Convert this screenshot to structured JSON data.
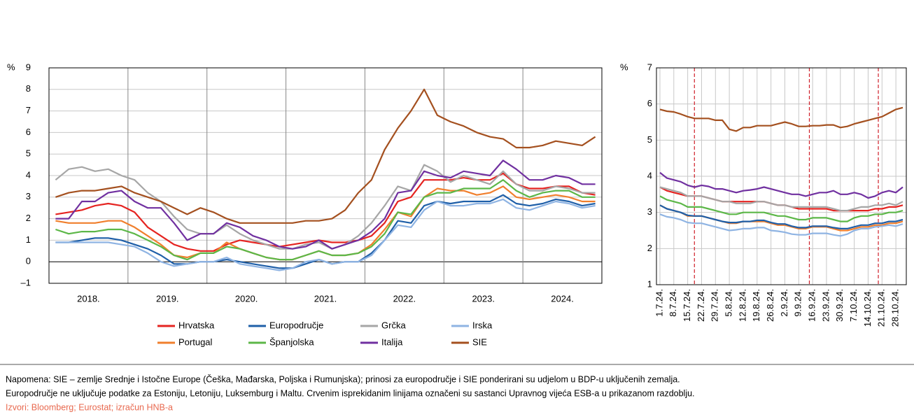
{
  "chart_data": [
    {
      "type": "line",
      "ylabel": "%",
      "categories": [
        "2018.",
        null,
        null,
        null,
        null,
        null,
        "2019.",
        null,
        null,
        null,
        null,
        null,
        "2020.",
        null,
        null,
        null,
        null,
        null,
        "2021.",
        null,
        null,
        null,
        null,
        null,
        "2022.",
        null,
        null,
        null,
        null,
        null,
        "2023.",
        null,
        null,
        null,
        null,
        null,
        "2024.",
        null,
        null,
        null,
        null,
        null
      ],
      "ylim": [
        -1,
        9
      ],
      "yticks": [
        {
          "value": -1,
          "label": "–1"
        },
        0,
        1,
        2,
        3,
        4,
        5,
        6,
        7,
        8,
        9
      ],
      "grid": true,
      "series": [
        {
          "name": "Hrvatska",
          "color": "#e52421",
          "values": [
            2.2,
            2.3,
            2.4,
            2.6,
            2.7,
            2.6,
            2.3,
            1.6,
            1.2,
            0.8,
            0.6,
            0.5,
            0.5,
            0.8,
            1.0,
            0.9,
            0.8,
            0.7,
            0.8,
            0.9,
            1.0,
            0.9,
            0.9,
            1.0,
            1.2,
            1.8,
            2.8,
            3.0,
            3.8,
            3.8,
            3.8,
            3.9,
            3.8,
            3.8,
            4.1,
            3.6,
            3.4,
            3.4,
            3.5,
            3.5,
            3.2,
            3.1
          ]
        },
        {
          "name": "Portugal",
          "color": "#f07f2d",
          "values": [
            1.9,
            1.8,
            1.8,
            1.8,
            1.9,
            1.9,
            1.6,
            1.2,
            0.8,
            0.3,
            0.2,
            0.4,
            0.4,
            0.9,
            0.6,
            0.4,
            0.2,
            0.1,
            0.1,
            0.3,
            0.5,
            0.3,
            0.3,
            0.4,
            0.8,
            1.5,
            2.3,
            2.1,
            3.0,
            3.4,
            3.3,
            3.3,
            3.1,
            3.2,
            3.5,
            3.0,
            2.9,
            3.0,
            3.1,
            3.0,
            2.8,
            2.8
          ]
        },
        {
          "name": "Europodručje",
          "color": "#1f5fa8",
          "values": [
            0.9,
            0.9,
            1.0,
            1.1,
            1.1,
            1.0,
            0.8,
            0.6,
            0.3,
            -0.1,
            -0.1,
            0.0,
            0.0,
            0.1,
            0.0,
            -0.1,
            -0.2,
            -0.3,
            -0.3,
            -0.1,
            0.1,
            -0.1,
            0.0,
            0.0,
            0.4,
            1.0,
            1.9,
            1.8,
            2.6,
            2.8,
            2.7,
            2.8,
            2.8,
            2.8,
            3.1,
            2.7,
            2.6,
            2.7,
            2.9,
            2.8,
            2.6,
            2.7
          ]
        },
        {
          "name": "Španjolska",
          "color": "#5cb748",
          "values": [
            1.5,
            1.3,
            1.4,
            1.4,
            1.5,
            1.5,
            1.3,
            1.0,
            0.7,
            0.3,
            0.1,
            0.4,
            0.4,
            0.7,
            0.6,
            0.4,
            0.2,
            0.1,
            0.1,
            0.3,
            0.5,
            0.3,
            0.3,
            0.4,
            0.7,
            1.3,
            2.3,
            2.2,
            3.0,
            3.2,
            3.2,
            3.4,
            3.4,
            3.4,
            3.8,
            3.3,
            3.0,
            3.2,
            3.3,
            3.3,
            3.0,
            3.0
          ]
        },
        {
          "name": "Grčka",
          "color": "#a6a6a6",
          "values": [
            3.8,
            4.3,
            4.4,
            4.2,
            4.3,
            4.0,
            3.8,
            3.2,
            2.8,
            2.1,
            1.5,
            1.3,
            1.3,
            1.7,
            1.3,
            1.0,
            0.8,
            0.6,
            0.6,
            0.8,
            0.9,
            0.6,
            0.8,
            1.2,
            1.8,
            2.6,
            3.5,
            3.3,
            4.5,
            4.2,
            3.7,
            4.0,
            3.8,
            3.6,
            4.2,
            3.6,
            3.3,
            3.3,
            3.5,
            3.4,
            3.2,
            3.2
          ]
        },
        {
          "name": "Italija",
          "color": "#7030a0",
          "values": [
            2.0,
            2.0,
            2.8,
            2.8,
            3.2,
            3.3,
            2.8,
            2.5,
            2.5,
            1.8,
            1.0,
            1.3,
            1.3,
            1.8,
            1.6,
            1.2,
            1.0,
            0.7,
            0.6,
            0.7,
            1.0,
            0.6,
            0.8,
            1.0,
            1.4,
            2.0,
            3.2,
            3.3,
            4.2,
            4.0,
            3.9,
            4.2,
            4.1,
            4.0,
            4.7,
            4.3,
            3.8,
            3.8,
            4.0,
            3.9,
            3.6,
            3.6
          ]
        },
        {
          "name": "Irska",
          "color": "#8fb4e3",
          "values": [
            0.9,
            0.9,
            0.9,
            0.9,
            0.9,
            0.8,
            0.7,
            0.4,
            0.0,
            -0.2,
            -0.1,
            0.0,
            0.0,
            0.2,
            -0.1,
            -0.2,
            -0.3,
            -0.4,
            -0.3,
            0.0,
            0.1,
            -0.1,
            0.0,
            0.0,
            0.3,
            1.0,
            1.7,
            1.6,
            2.4,
            2.8,
            2.6,
            2.6,
            2.7,
            2.7,
            2.9,
            2.5,
            2.4,
            2.6,
            2.8,
            2.7,
            2.5,
            2.6
          ]
        },
        {
          "name": "SIE",
          "color": "#a4501f",
          "values": [
            3.0,
            3.2,
            3.3,
            3.3,
            3.4,
            3.5,
            3.2,
            3.0,
            2.8,
            2.5,
            2.2,
            2.5,
            2.3,
            2.0,
            1.8,
            1.8,
            1.8,
            1.8,
            1.8,
            1.9,
            1.9,
            2.0,
            2.4,
            3.2,
            3.8,
            5.2,
            6.2,
            7.0,
            8.0,
            6.8,
            6.5,
            6.3,
            6.0,
            5.8,
            5.7,
            5.3,
            5.3,
            5.4,
            5.6,
            5.5,
            5.4,
            5.8
          ]
        }
      ]
    },
    {
      "type": "line",
      "ylabel": "%",
      "categories": [
        "1.7.24.",
        null,
        "8.7.24.",
        null,
        "15.7.24.",
        null,
        "22.7.24.",
        null,
        "29.7.24.",
        null,
        "5.8.24.",
        null,
        "12.8.24.",
        null,
        "19.8.24.",
        null,
        "26.8.24.",
        null,
        "2.9.24.",
        null,
        "9.9.24.",
        null,
        "16.9.24.",
        null,
        "23.9.24.",
        null,
        "30.9.24.",
        null,
        "7.10.24.",
        null,
        "14.10.24.",
        null,
        "21.10.24.",
        null,
        "28.10.24.",
        null
      ],
      "ylim": [
        1,
        7
      ],
      "yticks": [
        1,
        2,
        3,
        4,
        5,
        6,
        7
      ],
      "grid": true,
      "series": [
        {
          "color": "#e52421",
          "values": [
            3.7,
            3.6,
            3.55,
            3.5,
            3.45,
            3.45,
            3.45,
            3.4,
            3.35,
            3.3,
            3.3,
            3.3,
            3.3,
            3.3,
            3.3,
            3.3,
            3.25,
            3.2,
            3.2,
            3.15,
            3.1,
            3.1,
            3.1,
            3.1,
            3.1,
            3.05,
            3.05,
            3.05,
            3.05,
            3.05,
            3.05,
            3.1,
            3.1,
            3.15,
            3.15,
            3.2
          ]
        },
        {
          "color": "#f07f2d",
          "values": [
            3.2,
            3.1,
            3.05,
            3.0,
            2.9,
            2.9,
            2.9,
            2.85,
            2.8,
            2.75,
            2.7,
            2.7,
            2.75,
            2.75,
            2.75,
            2.75,
            2.7,
            2.65,
            2.65,
            2.6,
            2.55,
            2.55,
            2.6,
            2.6,
            2.6,
            2.55,
            2.5,
            2.5,
            2.55,
            2.6,
            2.6,
            2.65,
            2.65,
            2.7,
            2.7,
            2.75
          ]
        },
        {
          "color": "#1f5fa8",
          "values": [
            3.2,
            3.1,
            3.05,
            3.0,
            2.92,
            2.9,
            2.9,
            2.85,
            2.8,
            2.75,
            2.72,
            2.72,
            2.75,
            2.75,
            2.78,
            2.78,
            2.72,
            2.68,
            2.68,
            2.62,
            2.58,
            2.58,
            2.62,
            2.62,
            2.62,
            2.58,
            2.55,
            2.55,
            2.6,
            2.65,
            2.65,
            2.7,
            2.7,
            2.75,
            2.75,
            2.8
          ]
        },
        {
          "color": "#5cb748",
          "values": [
            3.45,
            3.35,
            3.3,
            3.25,
            3.15,
            3.15,
            3.15,
            3.1,
            3.05,
            3.0,
            2.95,
            2.95,
            3.0,
            3.0,
            3.0,
            3.0,
            2.95,
            2.9,
            2.9,
            2.85,
            2.8,
            2.8,
            2.85,
            2.85,
            2.85,
            2.8,
            2.75,
            2.75,
            2.85,
            2.9,
            2.9,
            2.95,
            2.95,
            3.0,
            3.0,
            3.05
          ]
        },
        {
          "color": "#a6a6a6",
          "values": [
            3.7,
            3.65,
            3.6,
            3.55,
            3.45,
            3.45,
            3.45,
            3.4,
            3.35,
            3.3,
            3.3,
            3.25,
            3.25,
            3.25,
            3.3,
            3.3,
            3.25,
            3.2,
            3.2,
            3.15,
            3.15,
            3.15,
            3.15,
            3.15,
            3.15,
            3.1,
            3.05,
            3.05,
            3.1,
            3.15,
            3.15,
            3.2,
            3.2,
            3.25,
            3.2,
            3.3
          ]
        },
        {
          "color": "#7030a0",
          "values": [
            4.1,
            3.95,
            3.9,
            3.85,
            3.75,
            3.7,
            3.75,
            3.72,
            3.65,
            3.65,
            3.6,
            3.55,
            3.6,
            3.62,
            3.65,
            3.7,
            3.65,
            3.6,
            3.55,
            3.5,
            3.5,
            3.45,
            3.5,
            3.55,
            3.55,
            3.6,
            3.5,
            3.5,
            3.55,
            3.5,
            3.4,
            3.45,
            3.55,
            3.6,
            3.55,
            3.7
          ]
        },
        {
          "color": "#8fb4e3",
          "values": [
            2.95,
            2.88,
            2.85,
            2.8,
            2.72,
            2.7,
            2.7,
            2.65,
            2.6,
            2.55,
            2.5,
            2.52,
            2.55,
            2.55,
            2.58,
            2.58,
            2.5,
            2.48,
            2.45,
            2.4,
            2.38,
            2.38,
            2.42,
            2.42,
            2.42,
            2.38,
            2.35,
            2.4,
            2.5,
            2.55,
            2.55,
            2.6,
            2.62,
            2.65,
            2.62,
            2.68
          ]
        },
        {
          "color": "#a4501f",
          "values": [
            5.85,
            5.8,
            5.78,
            5.72,
            5.65,
            5.6,
            5.6,
            5.6,
            5.55,
            5.55,
            5.3,
            5.25,
            5.35,
            5.35,
            5.4,
            5.4,
            5.4,
            5.45,
            5.5,
            5.45,
            5.38,
            5.38,
            5.4,
            5.4,
            5.42,
            5.42,
            5.35,
            5.38,
            5.45,
            5.5,
            5.55,
            5.6,
            5.65,
            5.75,
            5.85,
            5.9
          ]
        }
      ]
    }
  ],
  "footer": {
    "note_lines": [
      "Napomena: SIE – zemlje Srednje i Istočne Europe (Češka, Mađarska, Poljska i Rumunjska); prinosi za europodručje i SIE ponderirani su udjelom u BDP-u uključenih zemalja.",
      "Europodručje ne uključuje podatke za Estoniju, Letoniju, Luksemburg i Maltu. Crvenim isprekidanim linijama označeni su sastanci Upravnog vijeća ESB-a u prikazanom razdoblju."
    ],
    "sources": "Izvori: Bloomberg; Eurostat; izračun HNB-a"
  }
}
